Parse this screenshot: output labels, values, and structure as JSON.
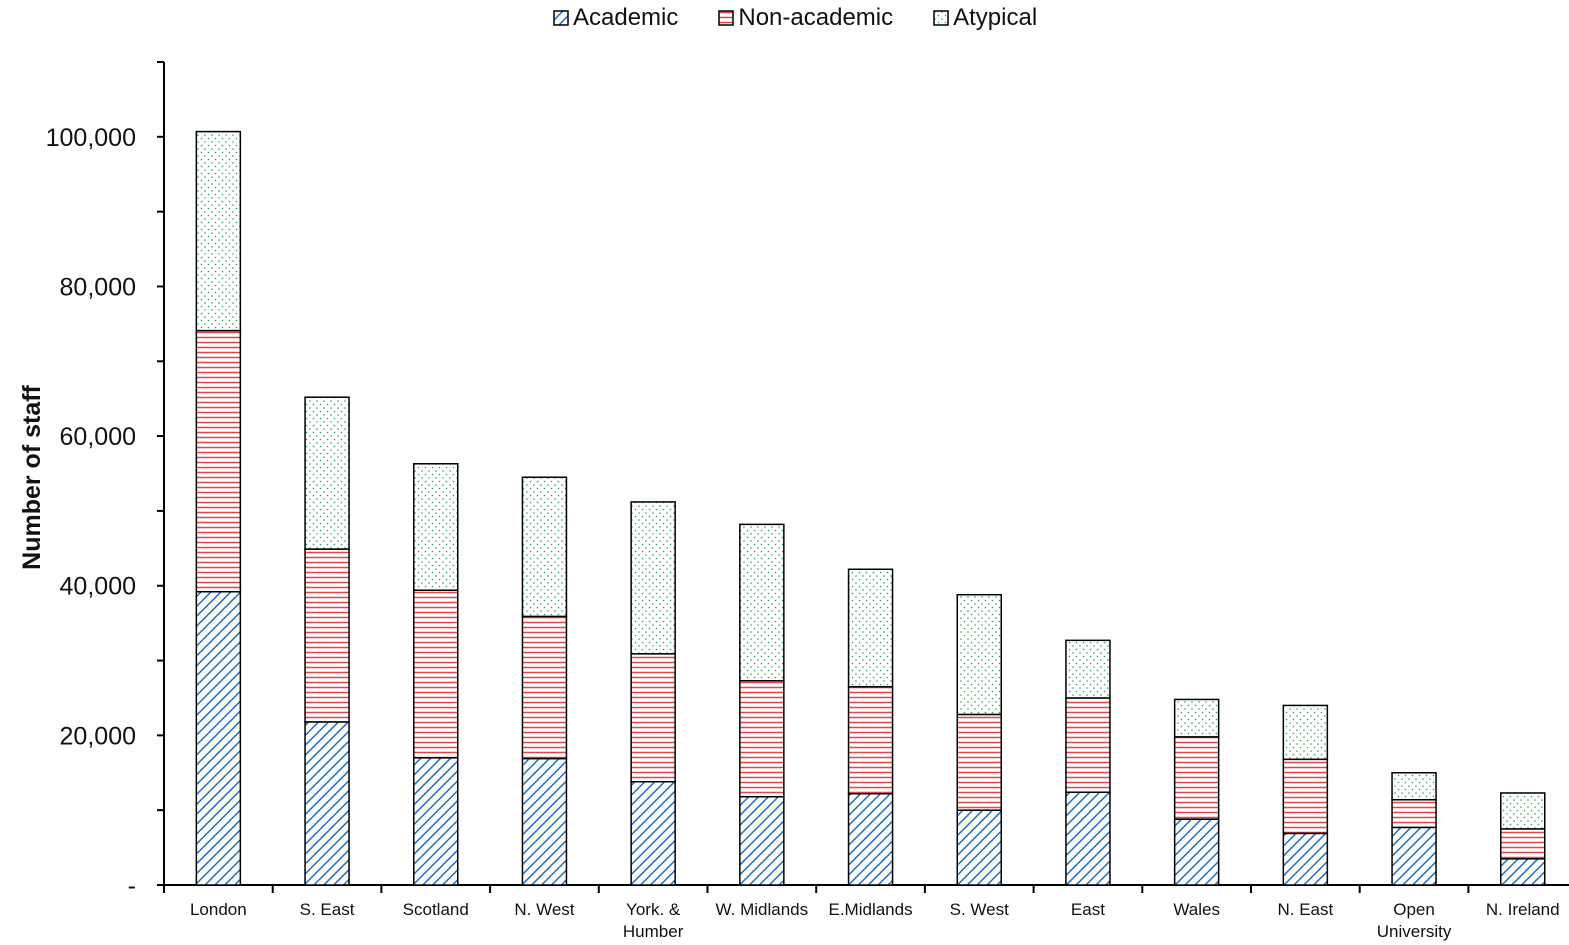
{
  "chart_data": {
    "type": "bar",
    "stacked": true,
    "title": "",
    "ylabel": "Number of staff",
    "xlabel": "",
    "ylim": [
      0,
      110000
    ],
    "yticks": [
      0,
      20000,
      40000,
      60000,
      80000,
      100000
    ],
    "ytick_labels": [
      "-",
      "20,000",
      "40,000",
      "60,000",
      "80,000",
      "100,000"
    ],
    "categories": [
      "London",
      "S. East",
      "Scotland",
      "N. West",
      "York. &\nHumber",
      "W. Midlands",
      "E.Midlands",
      "S. West",
      "East",
      "Wales",
      "N. East",
      "Open\nUniversity",
      "N. Ireland"
    ],
    "legend_position": "top-center",
    "grid": false,
    "series": [
      {
        "name": "Academic",
        "color": "#1f6fc2",
        "pattern": "diagonal",
        "values": [
          39200,
          21800,
          17000,
          16900,
          13800,
          11800,
          12200,
          10000,
          12400,
          8800,
          6900,
          7700,
          3500
        ]
      },
      {
        "name": "Non-academic",
        "color": "#e0474c",
        "pattern": "horizontal",
        "values": [
          34900,
          23100,
          22400,
          19000,
          17100,
          15500,
          14300,
          12800,
          12600,
          11000,
          9900,
          3700,
          4000
        ]
      },
      {
        "name": "Atypical",
        "color": "#2e9a5e",
        "pattern": "dots",
        "values": [
          26600,
          20300,
          16900,
          18600,
          20300,
          20900,
          15700,
          16000,
          7700,
          5000,
          7200,
          3600,
          4800
        ]
      }
    ]
  }
}
